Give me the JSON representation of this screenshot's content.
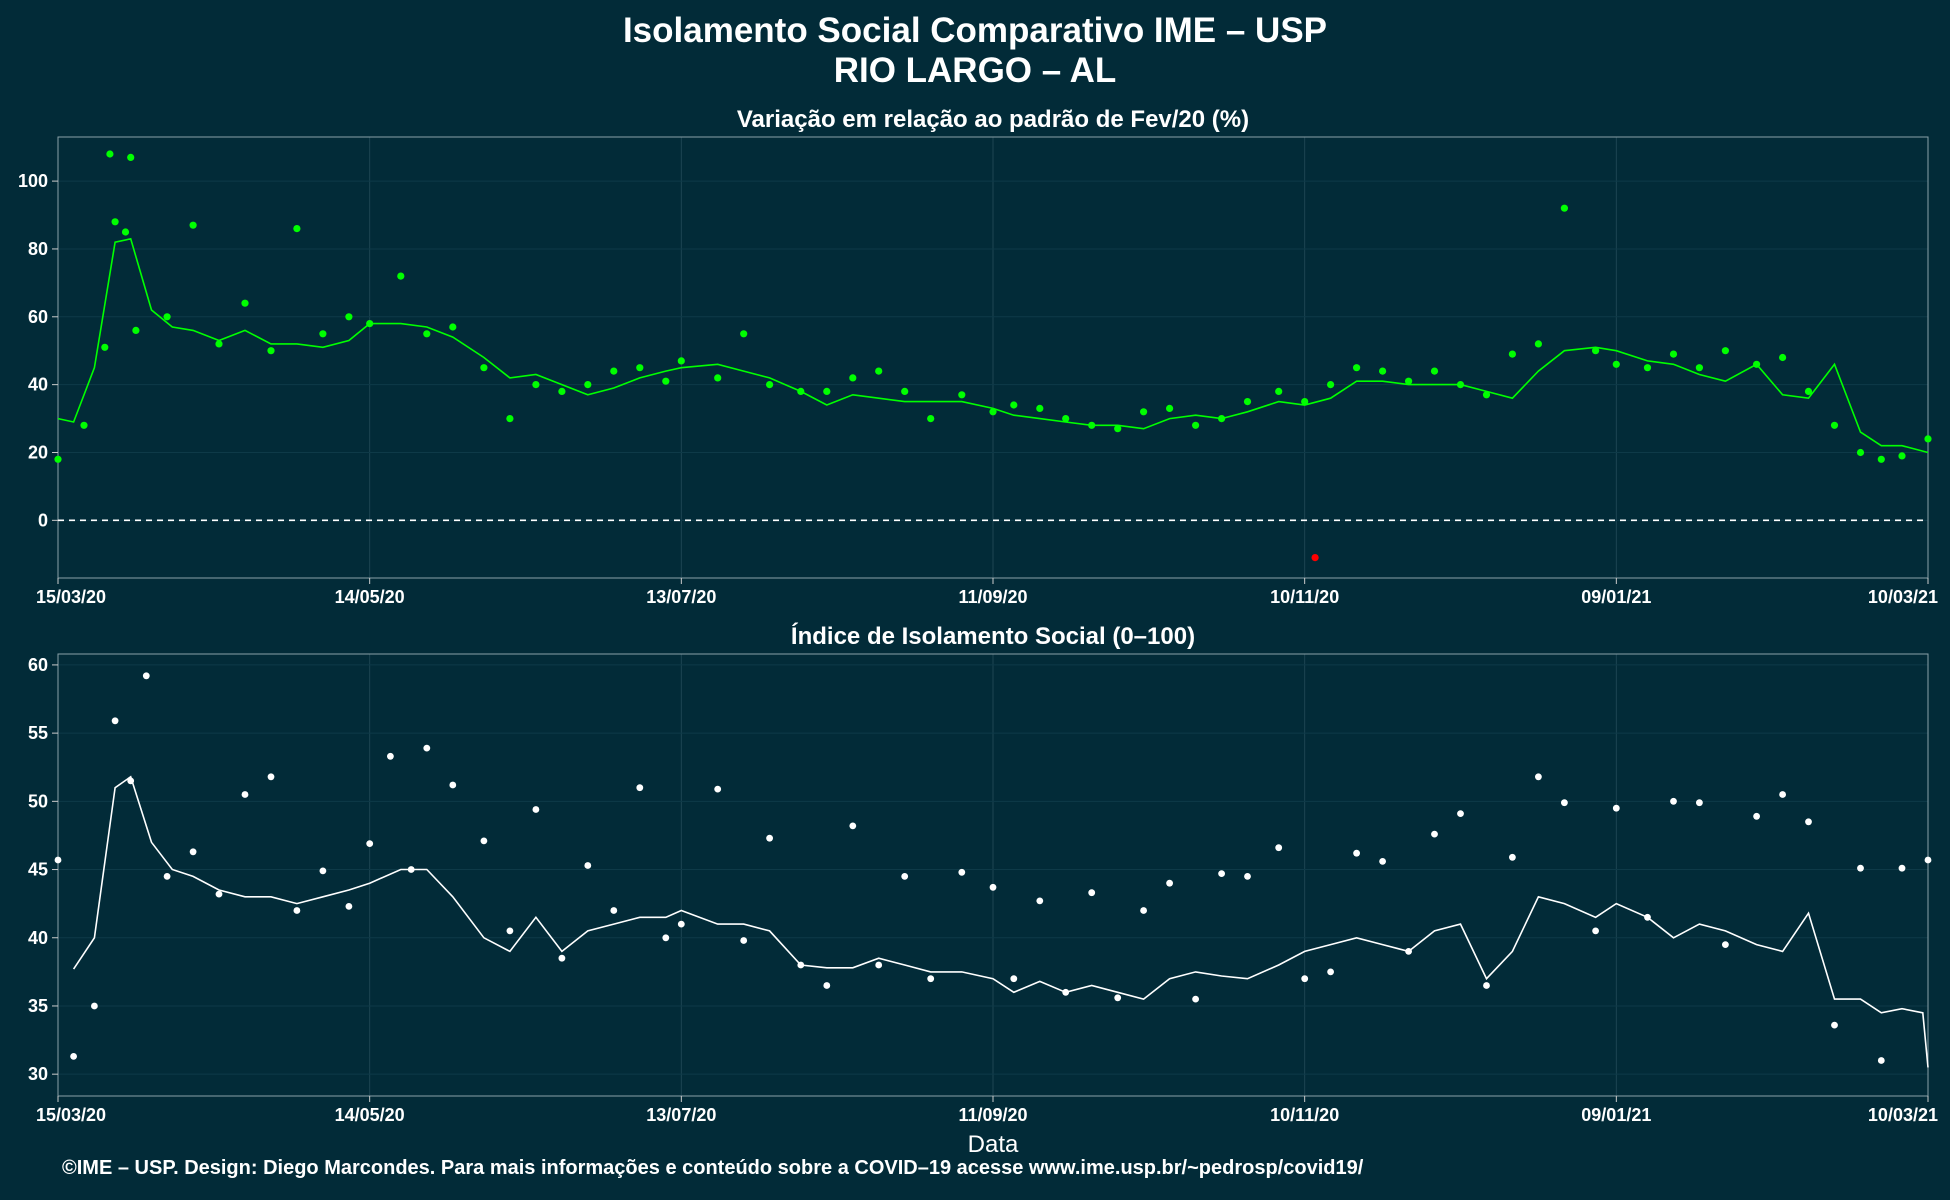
{
  "header": {
    "title": "Isolamento Social Comparativo IME – USP",
    "subtitle": "RIO LARGO – AL"
  },
  "footer": {
    "credit": "©IME – USP. Design: Diego Marcondes. Para mais informações e conteúdo sobre a COVID–19 acesse www.ime.usp.br/~pedrosp/covid19/"
  },
  "colors": {
    "background": "#022b38",
    "variation_points": "#00ff00",
    "variation_line": "#00ff00",
    "negative_points": "#ff0000",
    "index_points": "#ffffff",
    "index_line": "#ffffff"
  },
  "chart_data": [
    {
      "type": "scatter",
      "title": "Variação em relação ao padrão de Fev/20 (%)",
      "xlabel": "",
      "ylabel": "",
      "x_range": [
        "2020-03-15",
        "2021-03-10"
      ],
      "ylim": [
        -17,
        113
      ],
      "x_ticks": [
        "15/03/20",
        "14/05/20",
        "13/07/20",
        "11/09/20",
        "10/11/20",
        "09/01/21",
        "10/03/21"
      ],
      "y_ticks": [
        0,
        20,
        40,
        60,
        80,
        100
      ],
      "reference_line": 0,
      "grid": true,
      "series": [
        {
          "kind": "points",
          "x": [
            "2020-03-15",
            "2020-03-20",
            "2020-03-24",
            "2020-03-25",
            "2020-03-26",
            "2020-03-28",
            "2020-03-29",
            "2020-03-30",
            "2020-04-05",
            "2020-04-10",
            "2020-04-15",
            "2020-04-20",
            "2020-04-25",
            "2020-04-30",
            "2020-05-05",
            "2020-05-10",
            "2020-05-14",
            "2020-05-20",
            "2020-05-25",
            "2020-05-30",
            "2020-06-05",
            "2020-06-10",
            "2020-06-15",
            "2020-06-20",
            "2020-06-25",
            "2020-06-30",
            "2020-07-05",
            "2020-07-10",
            "2020-07-13",
            "2020-07-20",
            "2020-07-25",
            "2020-07-30",
            "2020-08-05",
            "2020-08-10",
            "2020-08-15",
            "2020-08-20",
            "2020-08-25",
            "2020-08-30",
            "2020-09-05",
            "2020-09-11",
            "2020-09-15",
            "2020-09-20",
            "2020-09-25",
            "2020-09-30",
            "2020-10-05",
            "2020-10-10",
            "2020-10-15",
            "2020-10-20",
            "2020-10-25",
            "2020-10-30",
            "2020-11-05",
            "2020-11-10",
            "2020-11-15",
            "2020-11-20",
            "2020-11-25",
            "2020-11-30",
            "2020-12-05",
            "2020-12-10",
            "2020-12-15",
            "2020-12-20",
            "2020-12-25",
            "2020-12-30",
            "2021-01-05",
            "2021-01-09",
            "2021-01-15",
            "2021-01-20",
            "2021-01-25",
            "2021-01-30",
            "2021-02-05",
            "2021-02-10",
            "2021-02-15",
            "2021-02-20",
            "2021-02-25",
            "2021-03-01",
            "2021-03-05",
            "2021-03-10"
          ],
          "y": [
            18,
            28,
            51,
            108,
            88,
            85,
            107,
            56,
            60,
            87,
            52,
            64,
            50,
            86,
            55,
            60,
            58,
            72,
            55,
            57,
            45,
            30,
            40,
            38,
            40,
            44,
            45,
            41,
            47,
            42,
            55,
            40,
            38,
            38,
            42,
            44,
            38,
            30,
            37,
            32,
            34,
            33,
            30,
            28,
            27,
            32,
            33,
            28,
            30,
            35,
            38,
            35,
            40,
            45,
            44,
            41,
            44,
            40,
            37,
            49,
            52,
            92,
            50,
            46,
            45,
            49,
            45,
            50,
            46,
            48,
            38,
            28,
            20,
            18,
            19,
            24
          ]
        },
        {
          "kind": "negative_points",
          "x": [
            "2020-11-12"
          ],
          "y": [
            -11
          ]
        },
        {
          "kind": "moving_average",
          "x": [
            "2020-03-15",
            "2020-03-18",
            "2020-03-22",
            "2020-03-26",
            "2020-03-29",
            "2020-04-02",
            "2020-04-06",
            "2020-04-10",
            "2020-04-15",
            "2020-04-20",
            "2020-04-25",
            "2020-04-30",
            "2020-05-05",
            "2020-05-10",
            "2020-05-14",
            "2020-05-20",
            "2020-05-25",
            "2020-05-30",
            "2020-06-05",
            "2020-06-10",
            "2020-06-15",
            "2020-06-20",
            "2020-06-25",
            "2020-06-30",
            "2020-07-05",
            "2020-07-10",
            "2020-07-13",
            "2020-07-20",
            "2020-07-25",
            "2020-07-30",
            "2020-08-05",
            "2020-08-10",
            "2020-08-15",
            "2020-08-20",
            "2020-08-25",
            "2020-08-30",
            "2020-09-05",
            "2020-09-11",
            "2020-09-15",
            "2020-09-20",
            "2020-09-25",
            "2020-09-30",
            "2020-10-05",
            "2020-10-10",
            "2020-10-15",
            "2020-10-20",
            "2020-10-25",
            "2020-10-30",
            "2020-11-05",
            "2020-11-10",
            "2020-11-15",
            "2020-11-20",
            "2020-11-25",
            "2020-11-30",
            "2020-12-05",
            "2020-12-10",
            "2020-12-15",
            "2020-12-20",
            "2020-12-25",
            "2020-12-30",
            "2021-01-05",
            "2021-01-09",
            "2021-01-15",
            "2021-01-20",
            "2021-01-25",
            "2021-01-30",
            "2021-02-05",
            "2021-02-10",
            "2021-02-15",
            "2021-02-20",
            "2021-02-25",
            "2021-03-01",
            "2021-03-05",
            "2021-03-10"
          ],
          "y": [
            30,
            29,
            45,
            82,
            83,
            62,
            57,
            56,
            53,
            56,
            52,
            52,
            51,
            53,
            58,
            58,
            57,
            54,
            48,
            42,
            43,
            40,
            37,
            39,
            42,
            44,
            45,
            46,
            44,
            42,
            38,
            34,
            37,
            36,
            35,
            35,
            35,
            33,
            31,
            30,
            29,
            28,
            28,
            27,
            30,
            31,
            30,
            32,
            35,
            34,
            36,
            41,
            41,
            40,
            40,
            40,
            38,
            36,
            44,
            50,
            51,
            50,
            47,
            46,
            43,
            41,
            46,
            37,
            36,
            46,
            26,
            22,
            22,
            20
          ]
        }
      ]
    },
    {
      "type": "scatter",
      "title": "Índice de Isolamento Social (0–100)",
      "xlabel": "Data",
      "ylabel": "",
      "x_range": [
        "2020-03-15",
        "2021-03-10"
      ],
      "ylim": [
        28.4,
        60.8
      ],
      "x_ticks": [
        "15/03/20",
        "14/05/20",
        "13/07/20",
        "11/09/20",
        "10/11/20",
        "09/01/21",
        "10/03/21"
      ],
      "y_ticks": [
        30,
        35,
        40,
        45,
        50,
        55,
        60
      ],
      "grid": true,
      "series": [
        {
          "kind": "points",
          "x": [
            "2020-03-15",
            "2020-03-18",
            "2020-03-22",
            "2020-03-26",
            "2020-03-29",
            "2020-04-01",
            "2020-04-05",
            "2020-04-10",
            "2020-04-15",
            "2020-04-20",
            "2020-04-25",
            "2020-04-30",
            "2020-05-05",
            "2020-05-10",
            "2020-05-14",
            "2020-05-18",
            "2020-05-22",
            "2020-05-25",
            "2020-05-30",
            "2020-06-05",
            "2020-06-10",
            "2020-06-15",
            "2020-06-20",
            "2020-06-25",
            "2020-06-30",
            "2020-07-05",
            "2020-07-10",
            "2020-07-13",
            "2020-07-20",
            "2020-07-25",
            "2020-07-30",
            "2020-08-05",
            "2020-08-10",
            "2020-08-15",
            "2020-08-20",
            "2020-08-25",
            "2020-08-30",
            "2020-09-05",
            "2020-09-11",
            "2020-09-15",
            "2020-09-20",
            "2020-09-25",
            "2020-09-30",
            "2020-10-05",
            "2020-10-10",
            "2020-10-15",
            "2020-10-20",
            "2020-10-25",
            "2020-10-30",
            "2020-11-05",
            "2020-11-10",
            "2020-11-15",
            "2020-11-20",
            "2020-11-25",
            "2020-11-30",
            "2020-12-05",
            "2020-12-10",
            "2020-12-15",
            "2020-12-20",
            "2020-12-25",
            "2020-12-30",
            "2021-01-05",
            "2021-01-09",
            "2021-01-15",
            "2021-01-20",
            "2021-01-25",
            "2021-01-30",
            "2021-02-05",
            "2021-02-10",
            "2021-02-15",
            "2021-02-20",
            "2021-02-25",
            "2021-03-01",
            "2021-03-05",
            "2021-03-10"
          ],
          "y": [
            45.7,
            31.3,
            35.0,
            55.9,
            51.5,
            59.2,
            44.5,
            46.3,
            43.2,
            50.5,
            51.8,
            42.0,
            44.9,
            42.3,
            46.9,
            53.3,
            45.0,
            53.9,
            51.2,
            47.1,
            40.5,
            49.4,
            38.5,
            45.3,
            42.0,
            51.0,
            40.0,
            41.0,
            50.9,
            39.8,
            47.3,
            38.0,
            36.5,
            48.2,
            38.0,
            44.5,
            37.0,
            44.8,
            43.7,
            37.0,
            42.7,
            36.0,
            43.3,
            35.6,
            42.0,
            44.0,
            35.5,
            44.7,
            44.5,
            46.6,
            37.0,
            37.5,
            46.2,
            45.6,
            39.0,
            47.6,
            49.1,
            36.5,
            45.9,
            51.8,
            49.9,
            40.5,
            49.5,
            41.5,
            50.0,
            49.9,
            39.5,
            48.9,
            50.5,
            48.5,
            33.6,
            45.1,
            31.0,
            45.1,
            45.7
          ]
        },
        {
          "kind": "moving_average",
          "x": [
            "2020-03-18",
            "2020-03-22",
            "2020-03-26",
            "2020-03-29",
            "2020-04-02",
            "2020-04-06",
            "2020-04-10",
            "2020-04-15",
            "2020-04-20",
            "2020-04-25",
            "2020-04-30",
            "2020-05-05",
            "2020-05-10",
            "2020-05-14",
            "2020-05-20",
            "2020-05-25",
            "2020-05-30",
            "2020-06-05",
            "2020-06-10",
            "2020-06-15",
            "2020-06-20",
            "2020-06-25",
            "2020-06-30",
            "2020-07-05",
            "2020-07-10",
            "2020-07-13",
            "2020-07-20",
            "2020-07-25",
            "2020-07-30",
            "2020-08-05",
            "2020-08-10",
            "2020-08-15",
            "2020-08-20",
            "2020-08-25",
            "2020-08-30",
            "2020-09-05",
            "2020-09-11",
            "2020-09-15",
            "2020-09-20",
            "2020-09-25",
            "2020-09-30",
            "2020-10-05",
            "2020-10-10",
            "2020-10-15",
            "2020-10-20",
            "2020-10-25",
            "2020-10-30",
            "2020-11-05",
            "2020-11-10",
            "2020-11-15",
            "2020-11-20",
            "2020-11-25",
            "2020-11-30",
            "2020-12-05",
            "2020-12-10",
            "2020-12-15",
            "2020-12-20",
            "2020-12-25",
            "2020-12-30",
            "2021-01-05",
            "2021-01-09",
            "2021-01-15",
            "2021-01-20",
            "2021-01-25",
            "2021-01-30",
            "2021-02-05",
            "2021-02-10",
            "2021-02-15",
            "2021-02-20",
            "2021-02-25",
            "2021-03-01",
            "2021-03-05",
            "2021-03-09",
            "2021-03-10"
          ],
          "y": [
            37.7,
            40.0,
            51.0,
            51.8,
            47.0,
            45.0,
            44.5,
            43.5,
            43.0,
            43.0,
            42.5,
            43.0,
            43.5,
            44.0,
            45.0,
            45.0,
            43.0,
            40.0,
            39.0,
            41.5,
            39.0,
            40.5,
            41.0,
            41.5,
            41.5,
            42.0,
            41.0,
            41.0,
            40.5,
            38.0,
            37.8,
            37.8,
            38.5,
            38.0,
            37.5,
            37.5,
            37.0,
            36.0,
            36.8,
            36.0,
            36.5,
            36.0,
            35.5,
            37.0,
            37.5,
            37.2,
            37.0,
            38.0,
            39.0,
            39.5,
            40.0,
            39.5,
            39.0,
            40.5,
            41.0,
            37.0,
            39.0,
            43.0,
            42.5,
            41.5,
            42.5,
            41.5,
            40.0,
            41.0,
            40.5,
            39.5,
            39.0,
            41.8,
            35.5,
            35.5,
            34.5,
            34.8,
            34.5,
            30.5
          ]
        }
      ]
    }
  ]
}
